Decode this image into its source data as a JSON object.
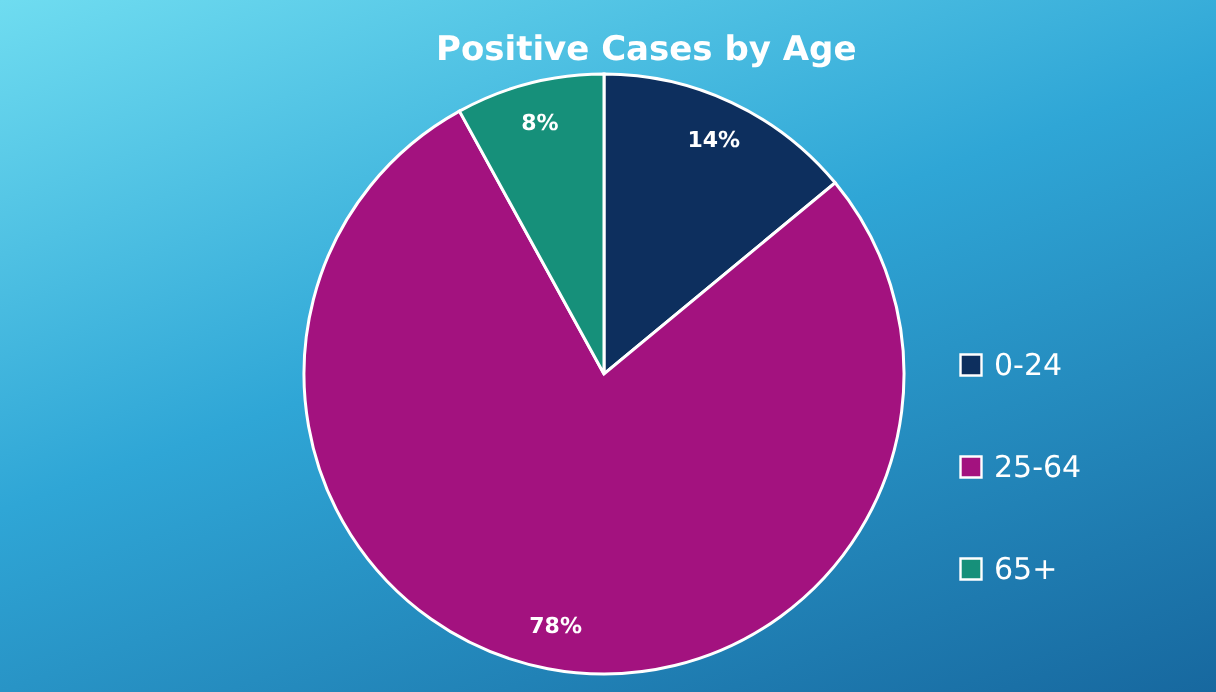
{
  "chart_data": {
    "type": "pie",
    "title": "Positive Cases by Age",
    "categories": [
      "0-24",
      "25-64",
      "65+"
    ],
    "values": [
      14,
      78,
      8
    ],
    "colors": [
      "#0d2f5e",
      "#a3127f",
      "#16907a"
    ],
    "value_labels": [
      "14%",
      "78%",
      "8%"
    ],
    "legend": "right"
  }
}
